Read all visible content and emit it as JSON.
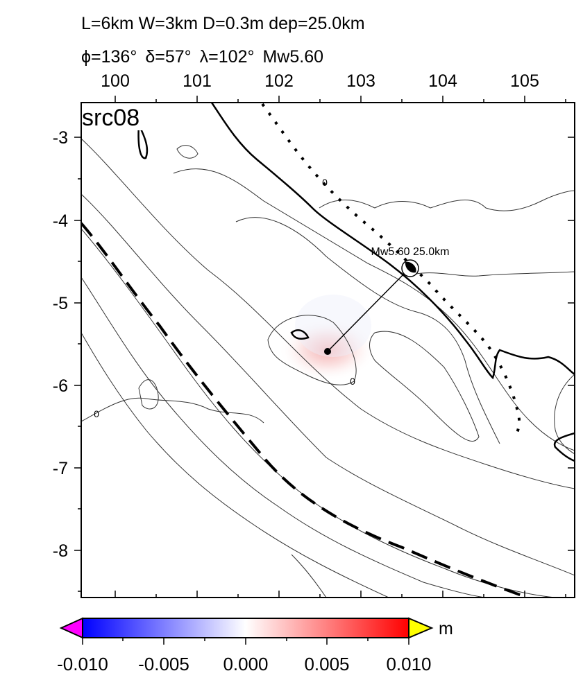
{
  "header": {
    "line1": "L=6km W=3km D=0.3m dep=25.0km",
    "strike_symbol": "ϕ",
    "strike": "=136°",
    "dip_symbol": "δ",
    "dip": "=57°",
    "rake_symbol": "λ",
    "rake": "=102°",
    "magnitude": "Mw5.60"
  },
  "map": {
    "panel_label": "src08",
    "lon_ticks": [
      "100",
      "101",
      "102",
      "103",
      "104",
      "105"
    ],
    "lat_ticks": [
      "-3",
      "-4",
      "-5",
      "-6",
      "-7",
      "-8"
    ],
    "contour_labels": [
      "0",
      "0",
      "0"
    ],
    "focal_mechanism_label": "Mw5.60 25.0km",
    "colors": {
      "land_outline": "#000000",
      "contours": "#333333",
      "uplift_blob": "#f7c9c9",
      "beachball_fill": "#000000"
    }
  },
  "colorbar": {
    "unit": "m",
    "ticks": [
      "-0.010",
      "-0.005",
      "0.000",
      "0.005",
      "0.010"
    ],
    "colors": {
      "low_extension": "#ff00ff",
      "min": "#0000ff",
      "mid": "#ffffff",
      "max": "#ff0000",
      "high_extension": "#ffff00"
    }
  }
}
